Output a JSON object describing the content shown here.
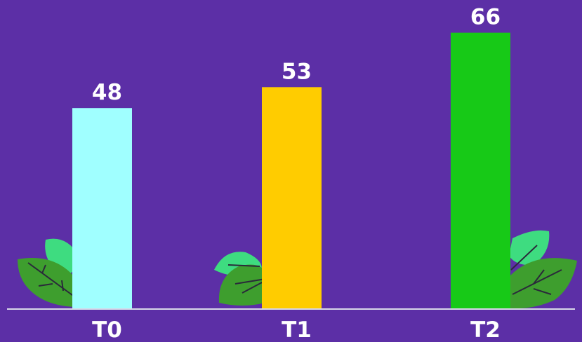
{
  "chart_data": {
    "type": "bar",
    "categories": [
      "T0",
      "T1",
      "T2"
    ],
    "values": [
      48,
      53,
      66
    ],
    "colors": [
      "#a0ffff",
      "#ffcc00",
      "#17c917"
    ]
  }
}
